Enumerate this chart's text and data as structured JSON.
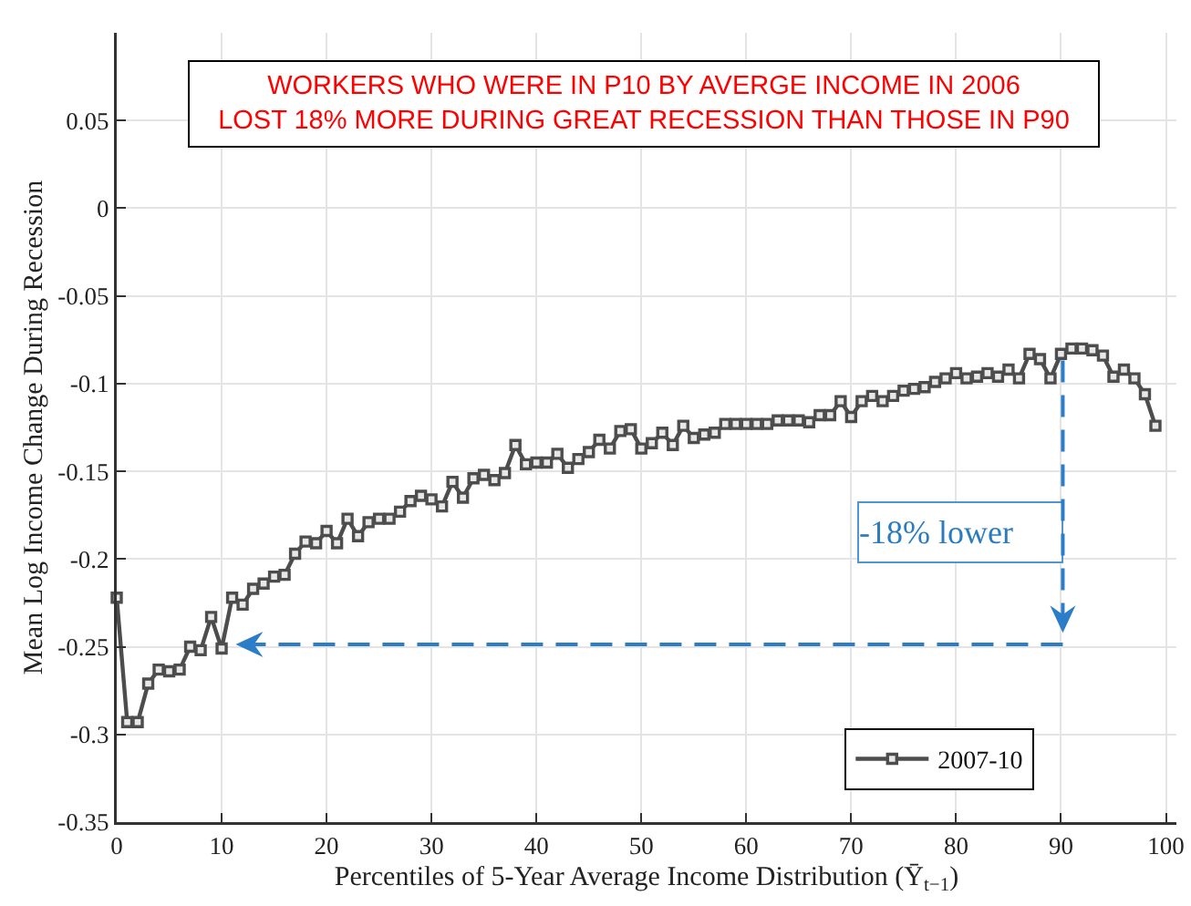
{
  "chart_data": {
    "type": "line",
    "xlabel": "Percentiles of 5-Year Average Income Distribution (Ȳ$_{t−1}$)",
    "ylabel": "Mean Log Income Change During Recession",
    "x": [
      0,
      1,
      2,
      3,
      4,
      5,
      6,
      7,
      8,
      9,
      10,
      11,
      12,
      13,
      14,
      15,
      16,
      17,
      18,
      19,
      20,
      21,
      22,
      23,
      24,
      25,
      26,
      27,
      28,
      29,
      30,
      31,
      32,
      33,
      34,
      35,
      36,
      37,
      38,
      39,
      40,
      41,
      42,
      43,
      44,
      45,
      46,
      47,
      48,
      49,
      50,
      51,
      52,
      53,
      54,
      55,
      56,
      57,
      58,
      59,
      60,
      61,
      62,
      63,
      64,
      65,
      66,
      67,
      68,
      69,
      70,
      71,
      72,
      73,
      74,
      75,
      76,
      77,
      78,
      79,
      80,
      81,
      82,
      83,
      84,
      85,
      86,
      87,
      88,
      89,
      90,
      91,
      92,
      93,
      94,
      95,
      96,
      97,
      98,
      99
    ],
    "series": [
      {
        "name": "2007-10",
        "color": "#4d4d4d",
        "values": [
          -0.222,
          -0.293,
          -0.293,
          -0.271,
          -0.263,
          -0.264,
          -0.263,
          -0.25,
          -0.252,
          -0.233,
          -0.251,
          -0.222,
          -0.226,
          -0.217,
          -0.214,
          -0.21,
          -0.209,
          -0.197,
          -0.19,
          -0.191,
          -0.184,
          -0.191,
          -0.177,
          -0.187,
          -0.179,
          -0.177,
          -0.177,
          -0.173,
          -0.167,
          -0.164,
          -0.166,
          -0.17,
          -0.156,
          -0.165,
          -0.154,
          -0.152,
          -0.155,
          -0.151,
          -0.135,
          -0.146,
          -0.145,
          -0.145,
          -0.14,
          -0.148,
          -0.143,
          -0.139,
          -0.132,
          -0.137,
          -0.127,
          -0.126,
          -0.137,
          -0.134,
          -0.128,
          -0.135,
          -0.124,
          -0.131,
          -0.129,
          -0.128,
          -0.123,
          -0.123,
          -0.123,
          -0.123,
          -0.123,
          -0.121,
          -0.121,
          -0.121,
          -0.122,
          -0.118,
          -0.118,
          -0.11,
          -0.119,
          -0.11,
          -0.107,
          -0.11,
          -0.107,
          -0.104,
          -0.103,
          -0.102,
          -0.099,
          -0.097,
          -0.094,
          -0.097,
          -0.096,
          -0.094,
          -0.096,
          -0.092,
          -0.097,
          -0.083,
          -0.086,
          -0.097,
          -0.083,
          -0.08,
          -0.08,
          -0.081,
          -0.084,
          -0.096,
          -0.092,
          -0.097,
          -0.106,
          -0.124
        ]
      }
    ],
    "xlim": [
      0,
      101
    ],
    "ylim": [
      -0.35,
      0.1
    ],
    "xticks": [
      0,
      10,
      20,
      30,
      40,
      50,
      60,
      70,
      80,
      90,
      100
    ],
    "yticks": [
      -0.35,
      -0.3,
      -0.25,
      -0.2,
      -0.15,
      -0.1,
      -0.05,
      0,
      0.05
    ],
    "grid": true,
    "legend": "bottom right",
    "marker": "square",
    "line_style": "solid",
    "annotations": [
      "WORKERS WHO WERE IN P10 BY AVERGE INCOME IN 2006\nLOST 18% MORE DURING GREAT RECESSION THAN THOSE IN P90",
      "-18% lower"
    ]
  }
}
